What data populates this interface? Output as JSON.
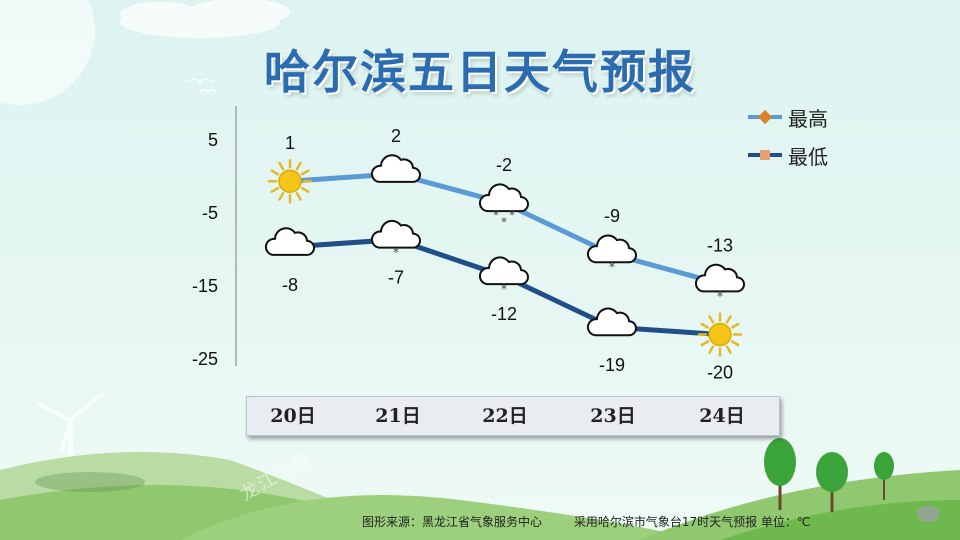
{
  "title": "哈尔滨五日天气预报",
  "legend": [
    {
      "label": "最高",
      "color": "#5b9bd5",
      "marker": "diamond",
      "marker_color": "#d9822b"
    },
    {
      "label": "最低",
      "color": "#1f4e89",
      "marker": "square",
      "marker_color": "#e8a070"
    }
  ],
  "footer": {
    "source": "图形来源：黑龙江省气象服务中心",
    "note": "采用哈尔滨市气象台17时天气预报 单位：℃"
  },
  "watermark": "龙江气象",
  "chart_data": {
    "type": "line",
    "categories": [
      "20日",
      "21日",
      "22日",
      "23日",
      "24日"
    ],
    "series": [
      {
        "name": "最高",
        "values": [
          1,
          2,
          -2,
          -9,
          -13
        ],
        "color": "#5b9bd5",
        "icons": [
          "sun-icon",
          "cloud-icon",
          "snow-icon",
          "snow-icon",
          "snow-icon"
        ]
      },
      {
        "name": "最低",
        "values": [
          -8,
          -7,
          -12,
          -19,
          -20
        ],
        "color": "#1f4e89",
        "icons": [
          "cloud-icon",
          "snow-icon",
          "snow-icon",
          "cloud-icon",
          "sun-icon"
        ]
      }
    ],
    "yticks": [
      5,
      -5,
      -15,
      -25
    ],
    "ylim": [
      -25,
      5
    ],
    "grid": false,
    "legend_position": "top-right"
  }
}
